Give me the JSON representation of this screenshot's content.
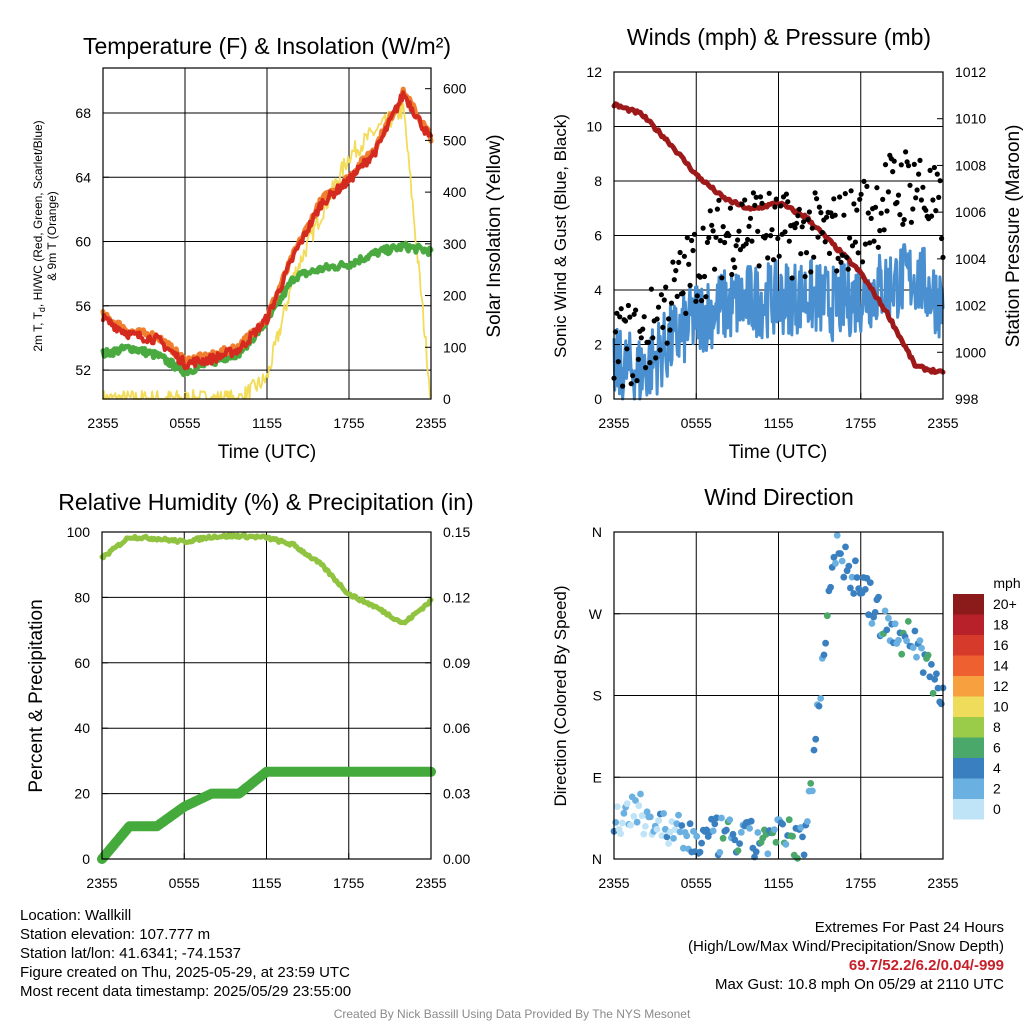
{
  "x_ticks": [
    "2355",
    "0555",
    "1155",
    "1755",
    "2355"
  ],
  "panels": {
    "temperature": {
      "title": "Temperature (F) & Insolation (W/m²)",
      "xlabel": "Time (UTC)",
      "ylabel_left": "2m T, Td, HI/WC (Red, Green, Scarlet/Blue) & 9m T (Orange)",
      "ylabel_left_line1": "2m T, T",
      "ylabel_left_sub": "d",
      "ylabel_left_line1b": ", HI/WC (Red, Green, Scarlet/Blue)",
      "ylabel_left_line2": "& 9m T (Orange)",
      "ylabel_right": "Solar Insolation (Yellow)",
      "left_ticks": [
        "52",
        "56",
        "60",
        "64",
        "68"
      ],
      "right_ticks": [
        "0",
        "100",
        "200",
        "300",
        "400",
        "500",
        "600"
      ]
    },
    "winds": {
      "title": "Winds (mph) & Pressure (mb)",
      "xlabel": "Time (UTC)",
      "ylabel_left": "Sonic Wind & Gust (Blue, Black)",
      "ylabel_right": "Station Pressure (Maroon)",
      "left_ticks": [
        "0",
        "2",
        "4",
        "6",
        "8",
        "10",
        "12"
      ],
      "right_ticks": [
        "998",
        "1000",
        "1002",
        "1004",
        "1006",
        "1008",
        "1010",
        "1012"
      ]
    },
    "humidity": {
      "title": "Relative Humidity (%) & Precipitation (in)",
      "ylabel_left": "Percent & Precipitation",
      "left_ticks": [
        "0",
        "20",
        "40",
        "60",
        "80",
        "100"
      ],
      "right_ticks": [
        "0.00",
        "0.03",
        "0.06",
        "0.09",
        "0.12",
        "0.15"
      ]
    },
    "direction": {
      "title": "Wind Direction",
      "ylabel_left": "Direction (Colored By Speed)",
      "dir_ticks": [
        "N",
        "E",
        "S",
        "W",
        "N"
      ],
      "legend_title": "mph",
      "legend_labels": [
        "20+",
        "18",
        "16",
        "14",
        "12",
        "10",
        "8",
        "6",
        "4",
        "2",
        "0"
      ],
      "legend_colors": [
        "#8b1a1a",
        "#b8202a",
        "#d63a2a",
        "#ee6030",
        "#f6a040",
        "#eedc5a",
        "#9acc4a",
        "#4aa86a",
        "#3a80c0",
        "#6ab0e0",
        "#bfe3f7"
      ]
    }
  },
  "info": {
    "location": "Location: Wallkill",
    "elevation": "Station elevation: 107.777 m",
    "latlon": "Station lat/lon: 41.6341; -74.1537",
    "created": "Figure created on Thu, 2025-05-29, at 23:59 UTC",
    "recent": "Most recent data timestamp: 2025/05/29 23:55:00"
  },
  "extremes": {
    "title": "Extremes For Past 24 Hours",
    "subtitle": "(High/Low/Max Wind/Precipitation/Snow Depth)",
    "values": "69.7/52.2/6.2/0.04/-999",
    "gust": "Max Gust: 10.8 mph On 05/29 at 2110 UTC"
  },
  "credit": "Created By Nick Bassill Using Data Provided By The NYS Mesonet",
  "chart_data": [
    {
      "type": "line",
      "title": "Temperature (F) & Insolation (W/m²)",
      "xlabel": "Time (UTC)",
      "x": [
        "2355",
        "0155",
        "0355",
        "0555",
        "0755",
        "0955",
        "1155",
        "1355",
        "1555",
        "1755",
        "1955",
        "2155",
        "2355"
      ],
      "ylim": [
        50.2,
        70.8
      ],
      "y2lim": [
        0,
        640
      ],
      "series": [
        {
          "name": "2m T",
          "color": "#d42a20",
          "values": [
            55.2,
            54.2,
            53.9,
            52.4,
            52.7,
            53.3,
            55.2,
            59.2,
            62.4,
            63.8,
            65.7,
            69.2,
            66.3
          ]
        },
        {
          "name": "9m T",
          "color": "#f08030",
          "values": [
            55.4,
            54.4,
            54.1,
            52.6,
            52.9,
            53.5,
            55.3,
            59.3,
            62.6,
            64.0,
            66.0,
            69.3,
            66.5
          ]
        },
        {
          "name": "Td",
          "color": "#4aaa40",
          "values": [
            53.0,
            53.4,
            52.9,
            51.9,
            52.5,
            53.1,
            55.0,
            57.8,
            58.3,
            58.6,
            59.3,
            59.7,
            59.4
          ]
        },
        {
          "name": "Solar Insolation",
          "axis": "right",
          "color": "#f2dc5a",
          "values": [
            0,
            0,
            0,
            0,
            0,
            0,
            40,
            240,
            360,
            470,
            520,
            560,
            0
          ]
        }
      ]
    },
    {
      "type": "line",
      "title": "Winds (mph) & Pressure (mb)",
      "xlabel": "Time (UTC)",
      "x": [
        "2355",
        "0155",
        "0355",
        "0555",
        "0755",
        "0955",
        "1155",
        "1355",
        "1555",
        "1755",
        "1955",
        "2155",
        "2355"
      ],
      "ylim": [
        0,
        12
      ],
      "y2lim": [
        998,
        1012
      ],
      "series": [
        {
          "name": "Sonic Wind",
          "color": "#4a90d0",
          "values": [
            1.2,
            1.0,
            2.0,
            3.0,
            3.4,
            3.6,
            3.7,
            3.8,
            3.5,
            3.8,
            4.2,
            4.5,
            3.5
          ]
        },
        {
          "name": "Gust",
          "color": "#000000",
          "values": [
            2.0,
            2.0,
            3.5,
            5.0,
            6.0,
            6.5,
            6.0,
            6.0,
            6.0,
            6.5,
            7.5,
            8.0,
            6.5
          ]
        },
        {
          "name": "Station Pressure",
          "axis": "right",
          "color": "#9e1a1a",
          "values": [
            1010.6,
            1010.2,
            1009.0,
            1007.6,
            1006.6,
            1006.1,
            1006.4,
            1005.8,
            1004.6,
            1003.4,
            1001.6,
            999.4,
            999.1
          ]
        }
      ]
    },
    {
      "type": "line",
      "title": "Relative Humidity (%) & Precipitation (in)",
      "x": [
        "2355",
        "0155",
        "0355",
        "0555",
        "0755",
        "0955",
        "1155",
        "1355",
        "1555",
        "1755",
        "1955",
        "2155",
        "2355"
      ],
      "ylim": [
        0,
        100
      ],
      "y2lim": [
        0,
        0.15
      ],
      "series": [
        {
          "name": "Relative Humidity",
          "color": "#90c440",
          "values": [
            92,
            98.5,
            98,
            97,
            98.6,
            98.8,
            98.3,
            96,
            90,
            81,
            77,
            72,
            79
          ]
        },
        {
          "name": "Precipitation",
          "axis": "right",
          "color": "#44aa3c",
          "values": [
            0,
            0.015,
            0.015,
            0.024,
            0.03,
            0.03,
            0.04,
            0.04,
            0.04,
            0.04,
            0.04,
            0.04,
            0.04
          ]
        }
      ]
    },
    {
      "type": "scatter",
      "title": "Wind Direction",
      "x": [
        "2355",
        "0155",
        "0355",
        "0555",
        "0755",
        "0955",
        "1155",
        "1355",
        "1555",
        "1755",
        "1955",
        "2155",
        "2355"
      ],
      "y_categories": [
        "N",
        "E",
        "S",
        "W",
        "N"
      ],
      "series": [
        {
          "name": "Direction",
          "values_deg": [
            45,
            50,
            30,
            20,
            25,
            20,
            25,
            20,
            345,
            300,
            250,
            240,
            180
          ]
        }
      ]
    }
  ]
}
